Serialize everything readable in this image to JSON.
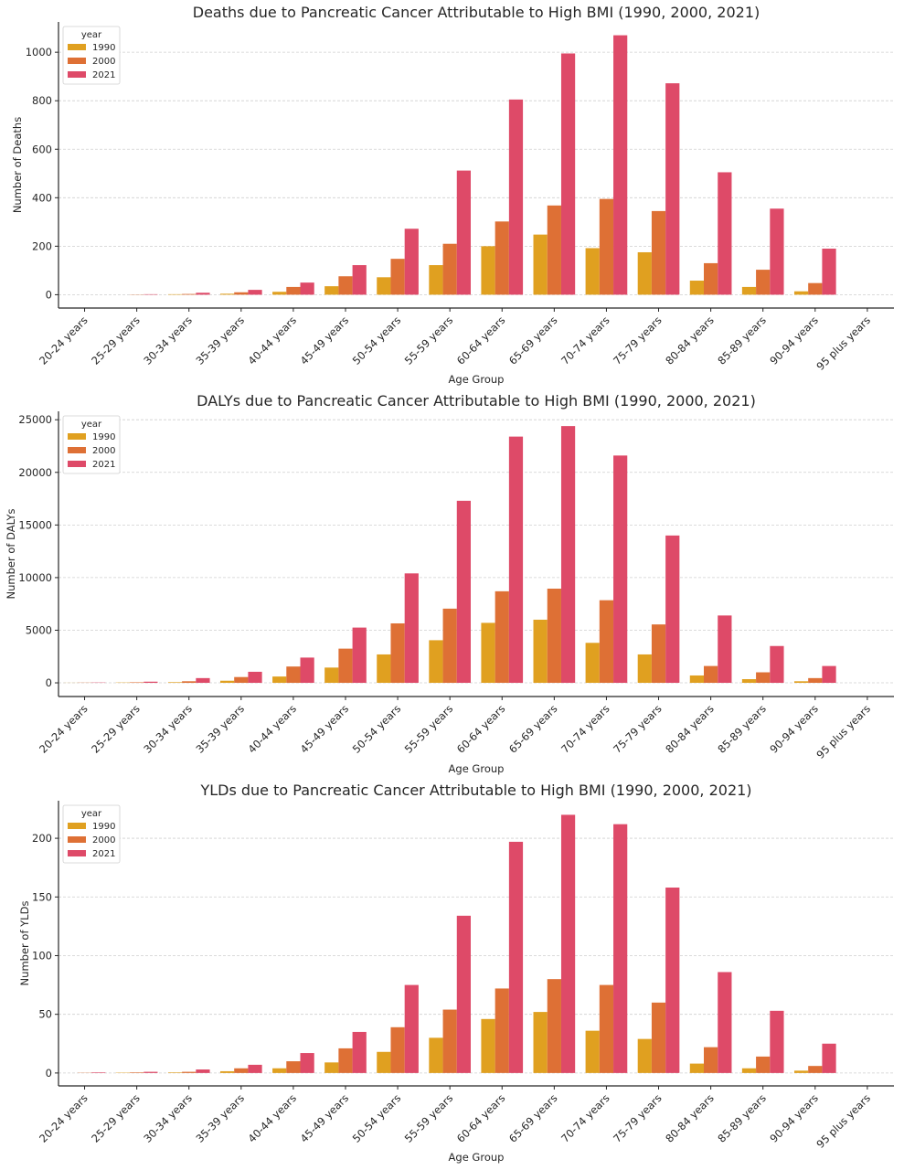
{
  "colors": {
    "1990": "#E0A020",
    "2000": "#DE7035",
    "2021": "#DE4A68"
  },
  "chart_data": [
    {
      "type": "bar",
      "title": "Deaths due to Pancreatic Cancer Attributable to High BMI (1990, 2000, 2021)",
      "xlabel": "Age Group",
      "ylabel": "Number of Deaths",
      "categories": [
        "20-24 years",
        "25-29 years",
        "30-34 years",
        "35-39 years",
        "40-44 years",
        "45-49 years",
        "50-54 years",
        "55-59 years",
        "60-64 years",
        "65-69 years",
        "70-74 years",
        "75-79 years",
        "80-84 years",
        "85-89 years",
        "90-94 years",
        "95 plus years"
      ],
      "ylim": [
        -55,
        1125
      ],
      "yticks": [
        0,
        200,
        400,
        600,
        800,
        1000
      ],
      "legend": {
        "title": "year",
        "position": "top-left"
      },
      "grid": "y",
      "series": [
        {
          "name": "1990",
          "values": [
            0,
            0,
            2,
            4,
            12,
            35,
            72,
            122,
            200,
            248,
            192,
            175,
            58,
            32,
            14,
            0
          ]
        },
        {
          "name": "2000",
          "values": [
            0,
            1,
            3,
            10,
            32,
            76,
            148,
            210,
            302,
            368,
            395,
            345,
            130,
            103,
            48,
            0
          ]
        },
        {
          "name": "2021",
          "values": [
            0,
            2,
            8,
            20,
            50,
            122,
            272,
            512,
            805,
            995,
            1070,
            872,
            505,
            355,
            190,
            0
          ]
        }
      ]
    },
    {
      "type": "bar",
      "title": "DALYs due to Pancreatic Cancer Attributable to High BMI (1990, 2000, 2021)",
      "xlabel": "Age Group",
      "ylabel": "Number of DALYs",
      "categories": [
        "20-24 years",
        "25-29 years",
        "30-34 years",
        "35-39 years",
        "40-44 years",
        "45-49 years",
        "50-54 years",
        "55-59 years",
        "60-64 years",
        "65-69 years",
        "70-74 years",
        "75-79 years",
        "80-84 years",
        "85-89 years",
        "90-94 years",
        "95 plus years"
      ],
      "ylim": [
        -1300,
        25800
      ],
      "yticks": [
        0,
        5000,
        10000,
        15000,
        20000,
        25000
      ],
      "legend": {
        "title": "year",
        "position": "top-left"
      },
      "grid": "y",
      "series": [
        {
          "name": "1990",
          "values": [
            10,
            30,
            60,
            200,
            600,
            1450,
            2700,
            4050,
            5700,
            6000,
            3800,
            2700,
            700,
            350,
            150,
            0
          ]
        },
        {
          "name": "2000",
          "values": [
            20,
            50,
            150,
            550,
            1550,
            3250,
            5650,
            7050,
            8700,
            8950,
            7850,
            5550,
            1600,
            1000,
            450,
            0
          ]
        },
        {
          "name": "2021",
          "values": [
            30,
            110,
            450,
            1050,
            2400,
            5250,
            10400,
            17300,
            23400,
            24400,
            21600,
            14000,
            6400,
            3500,
            1600,
            0
          ]
        }
      ]
    },
    {
      "type": "bar",
      "title": "YLDs due to Pancreatic Cancer Attributable to High BMI (1990, 2000, 2021)",
      "xlabel": "Age Group",
      "ylabel": "Number of YLDs",
      "categories": [
        "20-24 years",
        "25-29 years",
        "30-34 years",
        "35-39 years",
        "40-44 years",
        "45-49 years",
        "50-54 years",
        "55-59 years",
        "60-64 years",
        "65-69 years",
        "70-74 years",
        "75-79 years",
        "80-84 years",
        "85-89 years",
        "90-94 years",
        "95 plus years"
      ],
      "ylim": [
        -11,
        232
      ],
      "yticks": [
        0,
        50,
        100,
        150,
        200
      ],
      "legend": {
        "title": "year",
        "position": "top-left"
      },
      "grid": "y",
      "series": [
        {
          "name": "1990",
          "values": [
            0,
            0.3,
            0.5,
            1.5,
            4,
            9,
            18,
            30,
            46,
            52,
            36,
            29,
            8,
            4,
            2,
            0
          ]
        },
        {
          "name": "2000",
          "values": [
            0.2,
            0.5,
            1,
            4,
            10,
            21,
            39,
            54,
            72,
            80,
            75,
            60,
            22,
            14,
            6,
            0
          ]
        },
        {
          "name": "2021",
          "values": [
            0.5,
            1,
            3,
            7,
            17,
            35,
            75,
            134,
            197,
            220,
            212,
            158,
            86,
            53,
            25,
            0
          ]
        }
      ]
    }
  ]
}
